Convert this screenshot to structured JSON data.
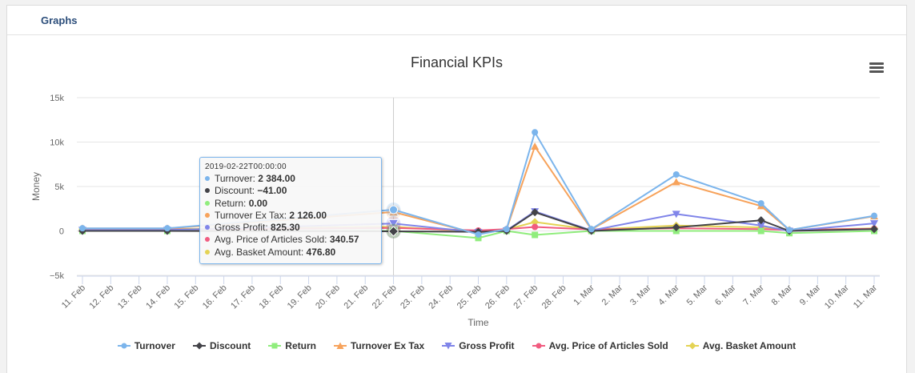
{
  "panel": {
    "title": "Graphs"
  },
  "chart_data": {
    "type": "line",
    "title": "Financial KPIs",
    "xlabel": "Time",
    "ylabel": "Money",
    "ylim": [
      -5000,
      15000
    ],
    "yticks": [
      -5000,
      0,
      5000,
      10000,
      15000
    ],
    "ytick_labels": [
      "−5k",
      "0",
      "5k",
      "10k",
      "15k"
    ],
    "categories": [
      "11. Feb",
      "12. Feb",
      "13. Feb",
      "14. Feb",
      "15. Feb",
      "16. Feb",
      "17. Feb",
      "18. Feb",
      "19. Feb",
      "20. Feb",
      "21. Feb",
      "22. Feb",
      "23. Feb",
      "24. Feb",
      "25. Feb",
      "26. Feb",
      "27. Feb",
      "28. Feb",
      "1. Mar",
      "2. Mar",
      "3. Mar",
      "4. Mar",
      "5. Mar",
      "6. Mar",
      "7. Mar",
      "8. Mar",
      "9. Mar",
      "10. Mar",
      "11. Mar"
    ],
    "grid": true,
    "legend_position": "bottom-center",
    "crosshair_category": "22. Feb",
    "series": [
      {
        "name": "Turnover",
        "color": "#7cb5ec",
        "marker": "circle",
        "points": [
          [
            "11. Feb",
            300
          ],
          [
            "14. Feb",
            300
          ],
          [
            "22. Feb",
            2384
          ],
          [
            "25. Feb",
            -400
          ],
          [
            "26. Feb",
            200
          ],
          [
            "27. Feb",
            11100
          ],
          [
            "1. Mar",
            200
          ],
          [
            "4. Mar",
            6350
          ],
          [
            "7. Mar",
            3100
          ],
          [
            "8. Mar",
            100
          ],
          [
            "11. Mar",
            1700
          ]
        ]
      },
      {
        "name": "Discount",
        "color": "#434348",
        "marker": "diamond",
        "points": [
          [
            "11. Feb",
            0
          ],
          [
            "14. Feb",
            0
          ],
          [
            "22. Feb",
            -41
          ],
          [
            "25. Feb",
            -100
          ],
          [
            "26. Feb",
            0
          ],
          [
            "27. Feb",
            2100
          ],
          [
            "1. Mar",
            0
          ],
          [
            "4. Mar",
            400
          ],
          [
            "7. Mar",
            1200
          ],
          [
            "8. Mar",
            0
          ],
          [
            "11. Mar",
            200
          ]
        ]
      },
      {
        "name": "Return",
        "color": "#90ed7d",
        "marker": "square",
        "points": [
          [
            "11. Feb",
            0
          ],
          [
            "14. Feb",
            0
          ],
          [
            "22. Feb",
            0
          ],
          [
            "25. Feb",
            -800
          ],
          [
            "26. Feb",
            0
          ],
          [
            "27. Feb",
            -450
          ],
          [
            "1. Mar",
            0
          ],
          [
            "4. Mar",
            0
          ],
          [
            "7. Mar",
            0
          ],
          [
            "8. Mar",
            -250
          ],
          [
            "11. Mar",
            0
          ]
        ]
      },
      {
        "name": "Turnover Ex Tax",
        "color": "#f7a35c",
        "marker": "triangle",
        "points": [
          [
            "11. Feb",
            280
          ],
          [
            "14. Feb",
            280
          ],
          [
            "22. Feb",
            2126
          ],
          [
            "25. Feb",
            -350
          ],
          [
            "26. Feb",
            180
          ],
          [
            "27. Feb",
            9500
          ],
          [
            "1. Mar",
            180
          ],
          [
            "4. Mar",
            5500
          ],
          [
            "7. Mar",
            2800
          ],
          [
            "8. Mar",
            90
          ],
          [
            "11. Mar",
            1650
          ]
        ]
      },
      {
        "name": "Gross Profit",
        "color": "#8085e9",
        "marker": "triangle-down",
        "points": [
          [
            "11. Feb",
            100
          ],
          [
            "14. Feb",
            100
          ],
          [
            "22. Feb",
            825.3
          ],
          [
            "25. Feb",
            -150
          ],
          [
            "26. Feb",
            50
          ],
          [
            "27. Feb",
            2200
          ],
          [
            "1. Mar",
            50
          ],
          [
            "4. Mar",
            1900
          ],
          [
            "7. Mar",
            600
          ],
          [
            "8. Mar",
            0
          ],
          [
            "11. Mar",
            850
          ]
        ]
      },
      {
        "name": "Avg. Price of Articles Sold",
        "color": "#f15c80",
        "marker": "circle",
        "points": [
          [
            "11. Feb",
            150
          ],
          [
            "14. Feb",
            150
          ],
          [
            "22. Feb",
            340.57
          ],
          [
            "25. Feb",
            50
          ],
          [
            "26. Feb",
            200
          ],
          [
            "27. Feb",
            450
          ],
          [
            "1. Mar",
            150
          ],
          [
            "4. Mar",
            300
          ],
          [
            "7. Mar",
            200
          ],
          [
            "8. Mar",
            100
          ],
          [
            "11. Mar",
            250
          ]
        ]
      },
      {
        "name": "Avg. Basket Amount",
        "color": "#e4d354",
        "marker": "diamond",
        "points": [
          [
            "11. Feb",
            200
          ],
          [
            "14. Feb",
            200
          ],
          [
            "22. Feb",
            476.8
          ],
          [
            "25. Feb",
            -100
          ],
          [
            "26. Feb",
            150
          ],
          [
            "27. Feb",
            1000
          ],
          [
            "1. Mar",
            150
          ],
          [
            "4. Mar",
            600
          ],
          [
            "7. Mar",
            400
          ],
          [
            "8. Mar",
            100
          ],
          [
            "11. Mar",
            300
          ]
        ]
      }
    ]
  },
  "tooltip": {
    "header": "2019-02-22T00:00:00",
    "rows": [
      {
        "label": "Turnover:",
        "value": "2 384.00",
        "color": "#7cb5ec"
      },
      {
        "label": "Discount:",
        "value": "−41.00",
        "color": "#434348"
      },
      {
        "label": "Return:",
        "value": "0.00",
        "color": "#90ed7d"
      },
      {
        "label": "Turnover Ex Tax:",
        "value": "2 126.00",
        "color": "#f7a35c"
      },
      {
        "label": "Gross Profit:",
        "value": "825.30",
        "color": "#8085e9"
      },
      {
        "label": "Avg. Price of Articles Sold:",
        "value": "340.57",
        "color": "#f15c80"
      },
      {
        "label": "Avg. Basket Amount:",
        "value": "476.80",
        "color": "#e4d354"
      }
    ]
  },
  "icons": {
    "menu": "hamburger-menu-icon"
  }
}
